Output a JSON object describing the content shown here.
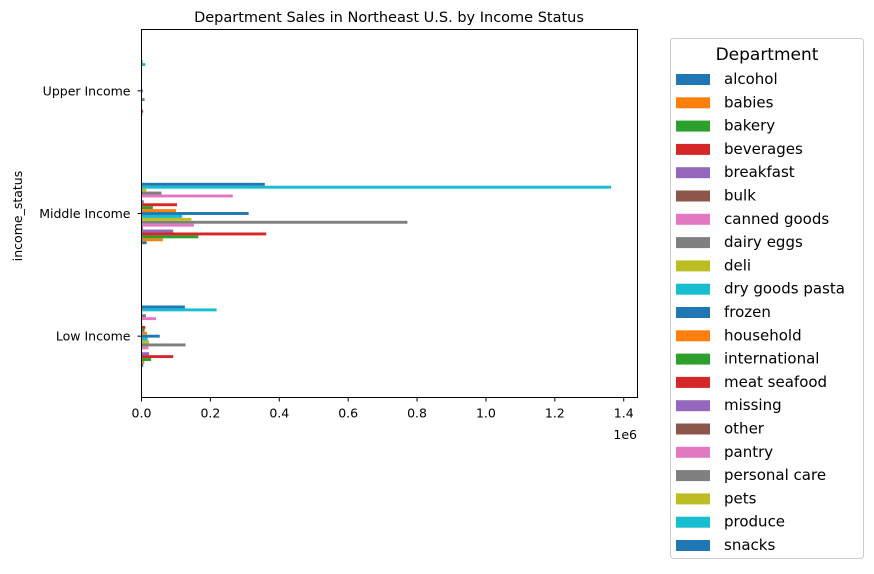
{
  "chart_data": {
    "type": "bar",
    "orientation": "horizontal",
    "title": "Department Sales in Northeast U.S. by Income Status",
    "xlabel": "",
    "ylabel": "income_status",
    "offset_label": "1e6",
    "xlim": [
      0,
      1440000
    ],
    "xticks": [
      {
        "value": 0,
        "label": "0.0"
      },
      {
        "value": 200000,
        "label": "0.2"
      },
      {
        "value": 400000,
        "label": "0.4"
      },
      {
        "value": 600000,
        "label": "0.6"
      },
      {
        "value": 800000,
        "label": "0.8"
      },
      {
        "value": 1000000,
        "label": "1.0"
      },
      {
        "value": 1200000,
        "label": "1.2"
      },
      {
        "value": 1400000,
        "label": "1.4"
      }
    ],
    "categories": [
      "Low Income",
      "Middle Income",
      "Upper Income"
    ],
    "legend_title": "Department",
    "legend_position": "outside right",
    "grid": false,
    "series": [
      {
        "name": "alcohol",
        "color": "#1f77b4",
        "values": [
          5000,
          15000,
          300
        ]
      },
      {
        "name": "babies",
        "color": "#ff7f0e",
        "values": [
          8000,
          62000,
          600
        ]
      },
      {
        "name": "bakery",
        "color": "#2ca02c",
        "values": [
          28000,
          165000,
          2500
        ]
      },
      {
        "name": "beverages",
        "color": "#d62728",
        "values": [
          92000,
          362000,
          4500
        ]
      },
      {
        "name": "breakfast",
        "color": "#9467bd",
        "values": [
          22000,
          92000,
          1500
        ]
      },
      {
        "name": "bulk",
        "color": "#8c564b",
        "values": [
          1000,
          4000,
          100
        ]
      },
      {
        "name": "canned goods",
        "color": "#e377c2",
        "values": [
          20000,
          152000,
          1500
        ]
      },
      {
        "name": "dairy eggs",
        "color": "#7f7f7f",
        "values": [
          128000,
          772000,
          9000
        ]
      },
      {
        "name": "deli",
        "color": "#bcbd22",
        "values": [
          22000,
          145000,
          1800
        ]
      },
      {
        "name": "dry goods pasta",
        "color": "#17becf",
        "values": [
          18000,
          118000,
          1300
        ]
      },
      {
        "name": "frozen",
        "color": "#1f77b4",
        "values": [
          53000,
          311000,
          3500
        ]
      },
      {
        "name": "household",
        "color": "#ff7f0e",
        "values": [
          16000,
          100000,
          1000
        ]
      },
      {
        "name": "international",
        "color": "#2ca02c",
        "values": [
          9000,
          33000,
          400
        ]
      },
      {
        "name": "meat seafood",
        "color": "#d62728",
        "values": [
          11000,
          103000,
          1200
        ]
      },
      {
        "name": "missing",
        "color": "#9467bd",
        "values": [
          2000,
          7000,
          200
        ]
      },
      {
        "name": "other",
        "color": "#8c564b",
        "values": [
          300,
          1500,
          50
        ]
      },
      {
        "name": "pantry",
        "color": "#e377c2",
        "values": [
          42000,
          265000,
          2000
        ]
      },
      {
        "name": "personal care",
        "color": "#7f7f7f",
        "values": [
          13000,
          58000,
          900
        ]
      },
      {
        "name": "pets",
        "color": "#bcbd22",
        "values": [
          2000,
          14000,
          200
        ]
      },
      {
        "name": "produce",
        "color": "#17becf",
        "values": [
          218000,
          1363000,
          11000
        ]
      },
      {
        "name": "snacks",
        "color": "#1f77b4",
        "values": [
          126000,
          358000,
          3000
        ]
      }
    ]
  }
}
